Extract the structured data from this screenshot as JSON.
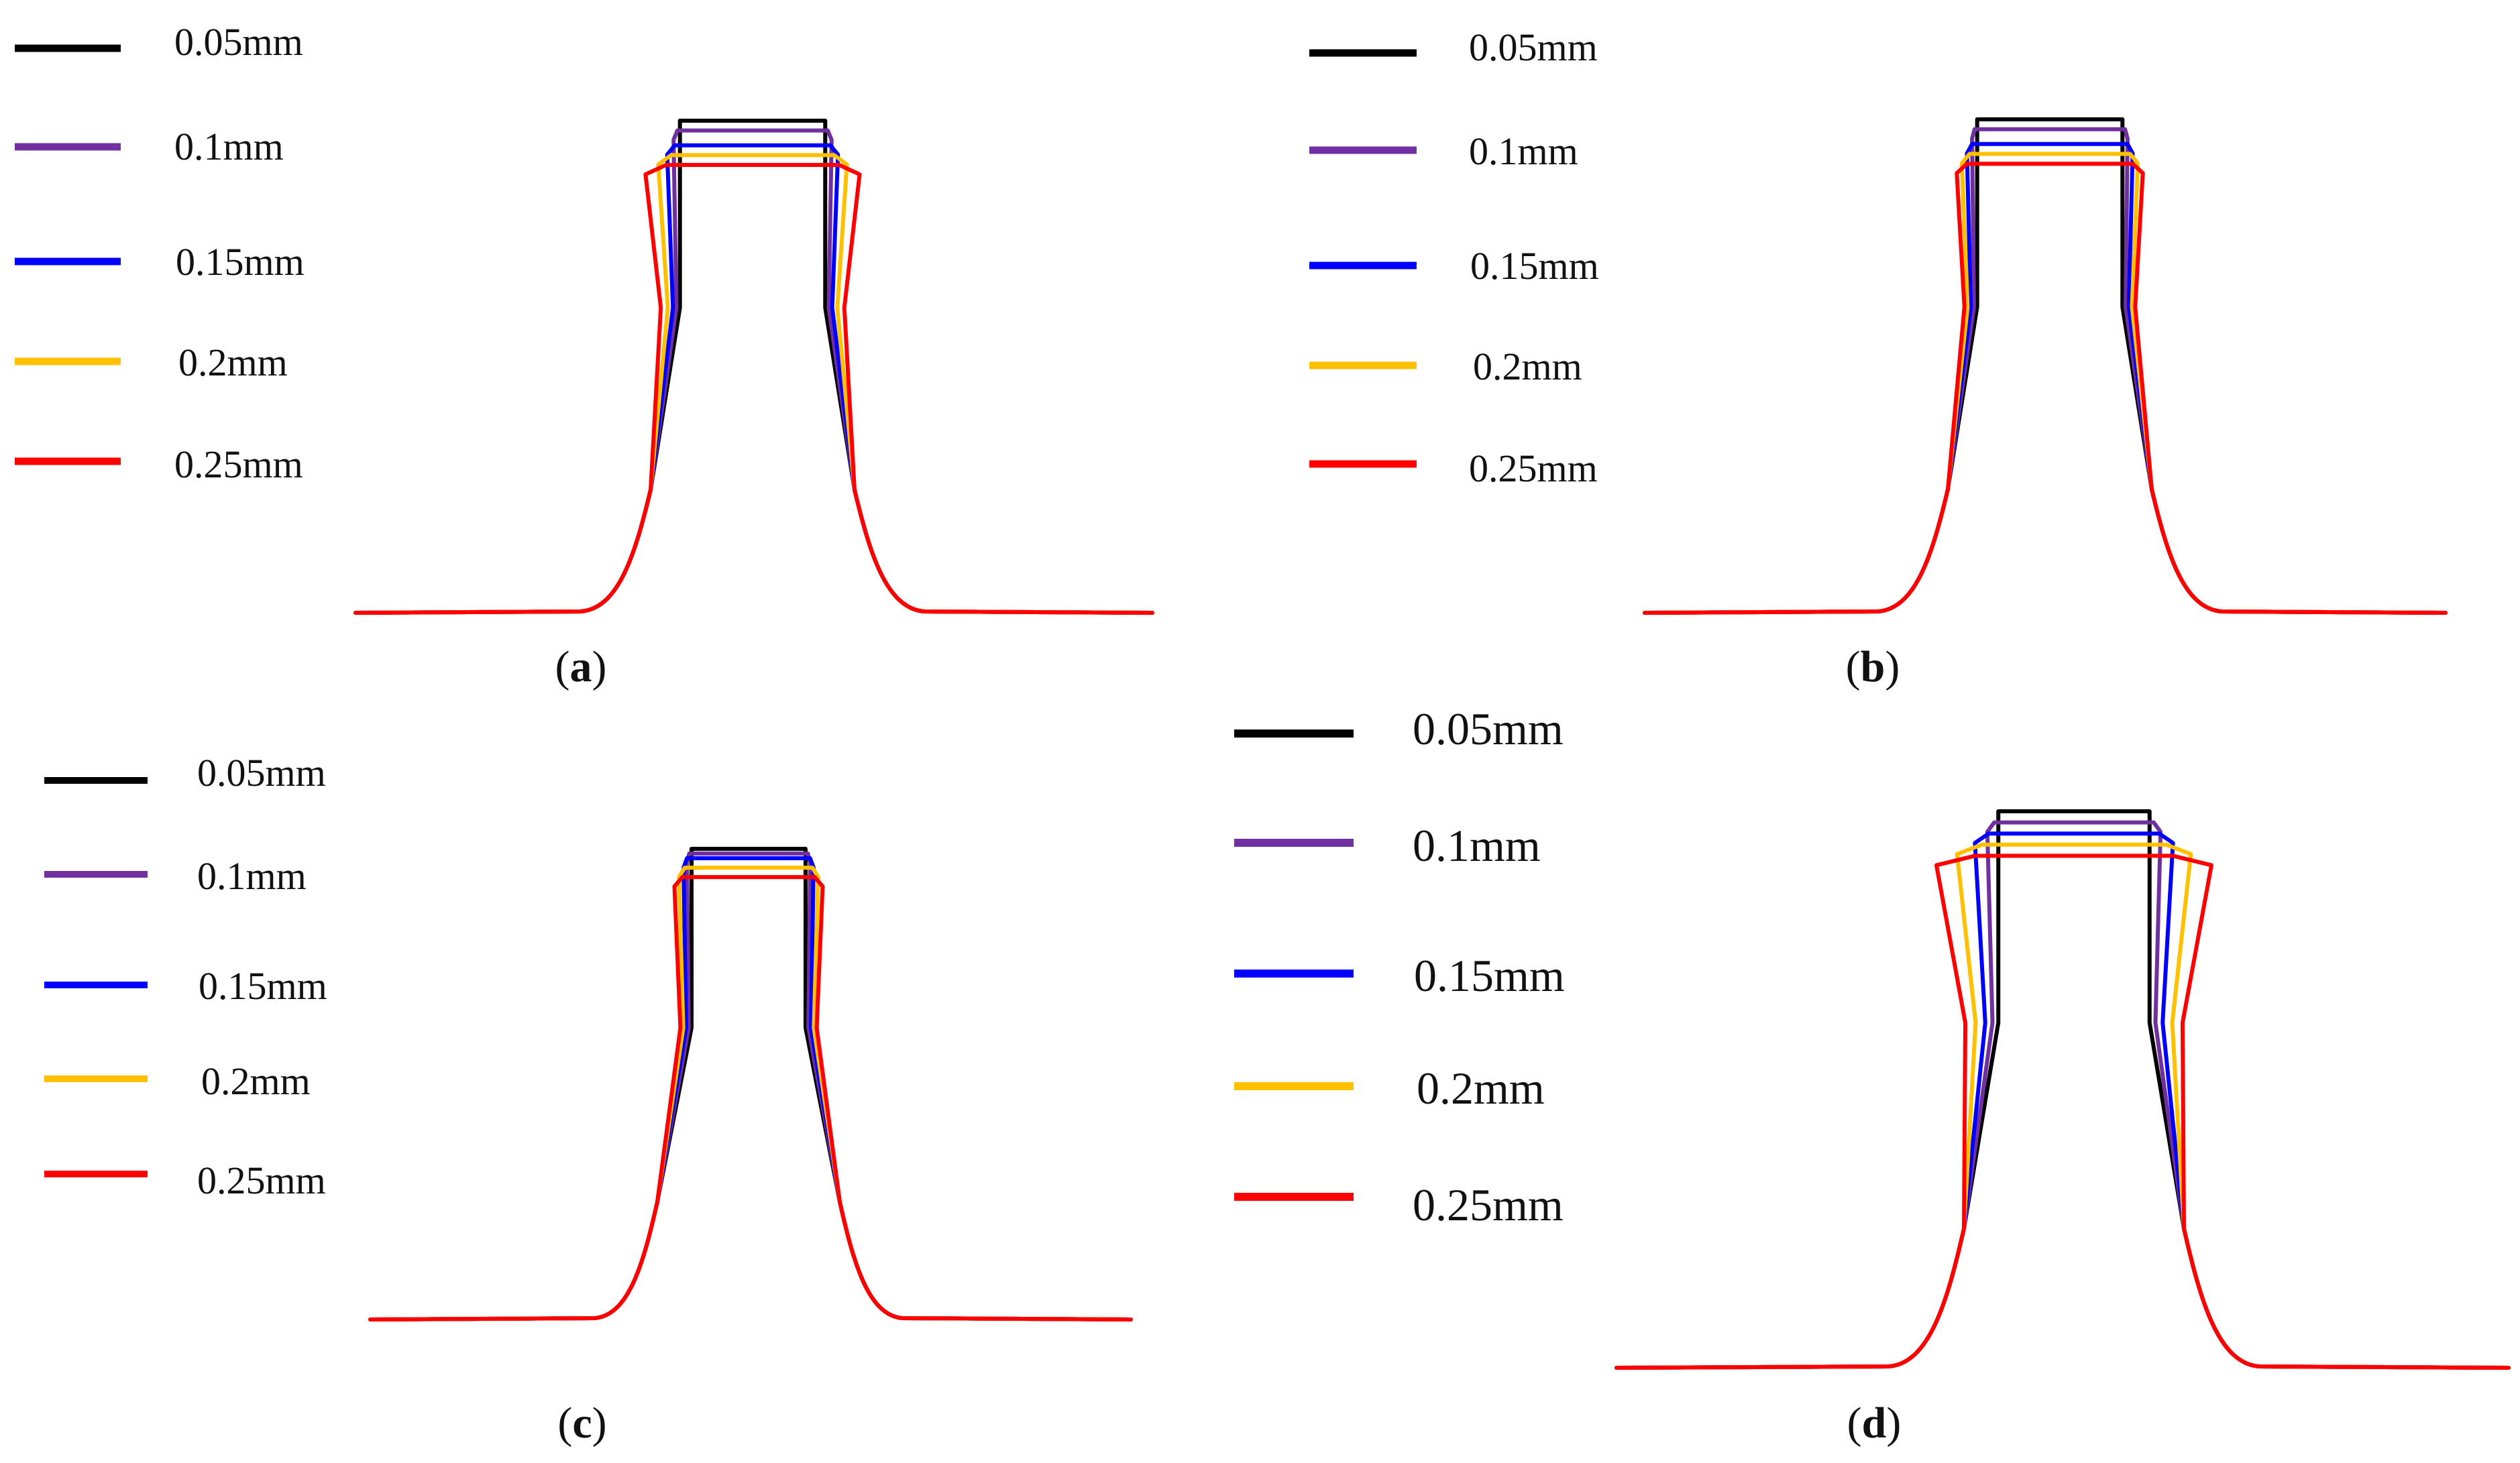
{
  "chart_data": [
    {
      "panel": "a",
      "type": "line",
      "label": "a",
      "series": [
        {
          "name": "0.05mm",
          "color": "#000000",
          "top": 100,
          "shoulder_out": 0.0,
          "half_width": 0.57
        },
        {
          "name": "0.1mm",
          "color": "#7030A0",
          "top": 98,
          "shoulder_out": 0.03,
          "half_width": 0.59
        },
        {
          "name": "0.15mm",
          "color": "#0000FF",
          "top": 95,
          "shoulder_out": 0.06,
          "half_width": 0.61
        },
        {
          "name": "0.2mm",
          "color": "#FFC000",
          "top": 93,
          "shoulder_out": 0.1,
          "half_width": 0.64
        },
        {
          "name": "0.25mm",
          "color": "#FF0000",
          "top": 91,
          "shoulder_out": 0.16,
          "half_width": 0.68
        }
      ]
    },
    {
      "panel": "b",
      "type": "line",
      "label": "b",
      "series": [
        {
          "name": "0.05mm",
          "color": "#000000",
          "top": 100,
          "shoulder_out": 0.0,
          "half_width": 0.57
        },
        {
          "name": "0.1mm",
          "color": "#7030A0",
          "top": 98,
          "shoulder_out": 0.02,
          "half_width": 0.59
        },
        {
          "name": "0.15mm",
          "color": "#0000FF",
          "top": 95,
          "shoulder_out": 0.04,
          "half_width": 0.61
        },
        {
          "name": "0.2mm",
          "color": "#FFC000",
          "top": 93,
          "shoulder_out": 0.06,
          "half_width": 0.63
        },
        {
          "name": "0.25mm",
          "color": "#FF0000",
          "top": 91,
          "shoulder_out": 0.08,
          "half_width": 0.65
        }
      ]
    },
    {
      "panel": "c",
      "type": "line",
      "label": "c",
      "series": [
        {
          "name": "0.05mm",
          "color": "#000000",
          "top": 100,
          "shoulder_out": 0.0,
          "half_width": 0.5
        },
        {
          "name": "0.1mm",
          "color": "#7030A0",
          "top": 99,
          "shoulder_out": 0.02,
          "half_width": 0.52
        },
        {
          "name": "0.15mm",
          "color": "#0000FF",
          "top": 98,
          "shoulder_out": 0.03,
          "half_width": 0.54
        },
        {
          "name": "0.2mm",
          "color": "#FFC000",
          "top": 96,
          "shoulder_out": 0.05,
          "half_width": 0.56
        },
        {
          "name": "0.25mm",
          "color": "#FF0000",
          "top": 94,
          "shoulder_out": 0.07,
          "half_width": 0.58
        }
      ]
    },
    {
      "panel": "d",
      "type": "line",
      "label": "d",
      "series": [
        {
          "name": "0.05mm",
          "color": "#000000",
          "top": 100,
          "shoulder_out": 0.0,
          "half_width": 0.55
        },
        {
          "name": "0.1mm",
          "color": "#7030A0",
          "top": 98,
          "shoulder_out": 0.05,
          "half_width": 0.58
        },
        {
          "name": "0.15mm",
          "color": "#0000FF",
          "top": 96,
          "shoulder_out": 0.1,
          "half_width": 0.62
        },
        {
          "name": "0.2mm",
          "color": "#FFC000",
          "top": 94,
          "shoulder_out": 0.18,
          "half_width": 0.67
        },
        {
          "name": "0.25mm",
          "color": "#FF0000",
          "top": 92,
          "shoulder_out": 0.28,
          "half_width": 0.72
        }
      ]
    }
  ]
}
